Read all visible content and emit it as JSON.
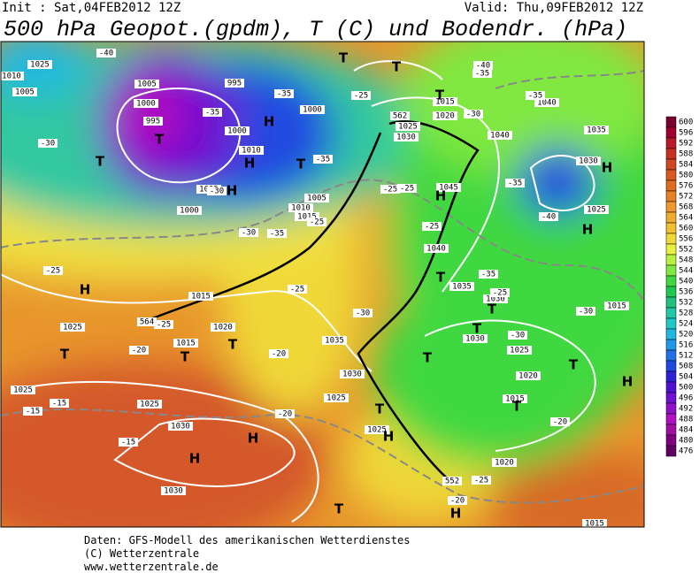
{
  "header": {
    "init": "Init : Sat,04FEB2012 12Z",
    "valid": "Valid: Thu,09FEB2012 12Z",
    "title": "500 hPa Geopot.(gpdm), T (C) und Bodendr. (hPa)"
  },
  "colorbar": {
    "levels": [
      600,
      596,
      592,
      588,
      584,
      580,
      576,
      572,
      568,
      564,
      560,
      556,
      552,
      548,
      544,
      540,
      536,
      532,
      528,
      524,
      520,
      516,
      512,
      508,
      504,
      500,
      496,
      492,
      488,
      484,
      480,
      476
    ],
    "colors": [
      "#7a0030",
      "#a00030",
      "#b81a28",
      "#c83020",
      "#d04820",
      "#d85a20",
      "#e06c20",
      "#e88028",
      "#f09830",
      "#f0ac30",
      "#f0c030",
      "#f0d838",
      "#e8f040",
      "#b8f040",
      "#80e840",
      "#40d840",
      "#20c850",
      "#20c080",
      "#20c8a8",
      "#20c8c8",
      "#20b8e0",
      "#2098e8",
      "#2070e8",
      "#2048e0",
      "#3020d8",
      "#5010d0",
      "#7010d0",
      "#9010c8",
      "#b010c0",
      "#a010a0",
      "#800080",
      "#600060"
    ]
  },
  "map_labels": [
    "1025",
    "1010",
    "1005",
    "1005",
    "1000",
    "995",
    "995",
    "1000",
    "1000",
    "1010",
    "1005",
    "1000",
    "1005",
    "1010",
    "1015",
    "1040",
    "1035",
    "1030",
    "1040",
    "1030",
    "1025",
    "1015",
    "1020",
    "1045",
    "1040",
    "1035",
    "1030",
    "1030",
    "1025",
    "1020",
    "1015",
    "1025",
    "1015",
    "1015",
    "1025",
    "1020",
    "1015",
    "1035",
    "1030",
    "1025",
    "1025",
    "1030",
    "1030",
    "1025",
    "1025",
    "1020",
    "1015",
    "-40",
    "-35",
    "-35",
    "-30",
    "-35",
    "-30",
    "-30",
    "-35",
    "-25",
    "-25",
    "-25",
    "-25",
    "-30",
    "-25",
    "-40",
    "-35",
    "-30",
    "-25",
    "-20",
    "-20",
    "-15",
    "-15",
    "-15",
    "-20",
    "-20",
    "-20",
    "-25",
    "-35",
    "-30",
    "-25",
    "-25",
    "562",
    "564",
    "552",
    "-40",
    "-35",
    "-35",
    "-25",
    "-30",
    "T",
    "T",
    "T",
    "T",
    "T",
    "T",
    "T",
    "T",
    "T",
    "T",
    "T",
    "T",
    "T",
    "T",
    "T",
    "T",
    "T",
    "H",
    "H",
    "H",
    "H",
    "H",
    "H",
    "H",
    "H",
    "H",
    "H",
    "H",
    "H"
  ],
  "footer": [
    "Daten: GFS-Modell des amerikanischen Wetterdienstes",
    "(C) Wetterzentrale",
    "www.wetterzentrale.de"
  ]
}
